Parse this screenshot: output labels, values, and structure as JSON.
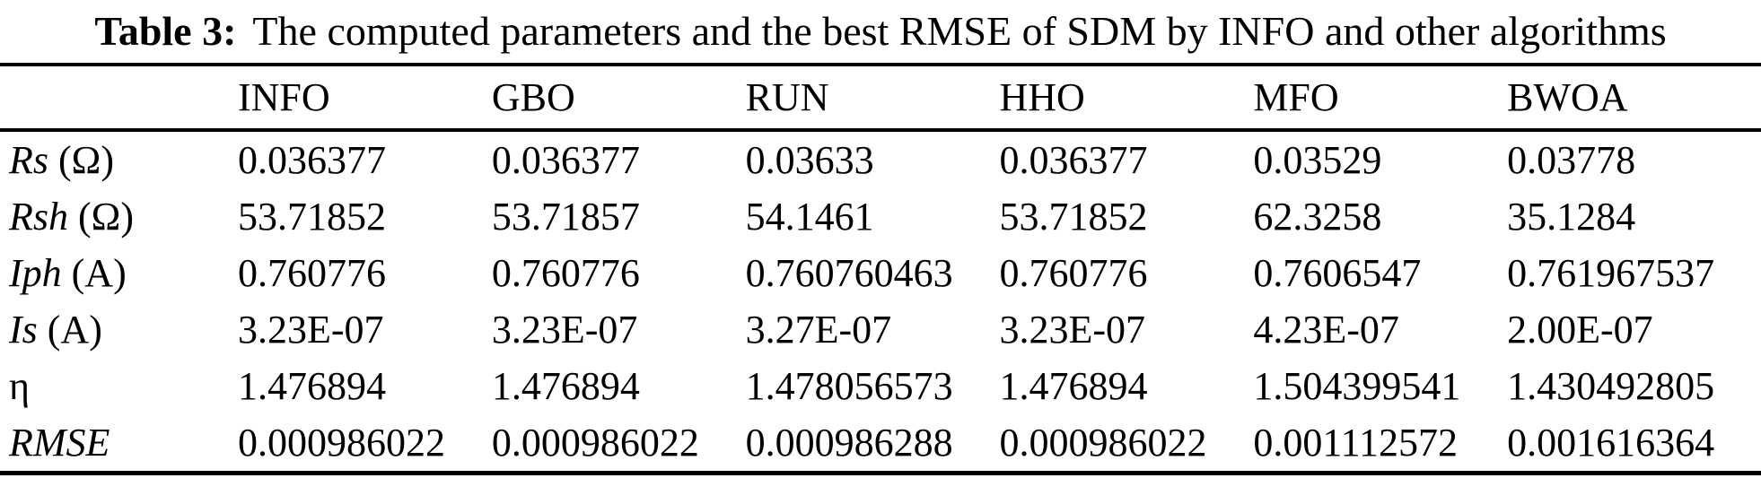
{
  "title": {
    "label": "Table 3:",
    "text": "The computed parameters and the best RMSE of SDM by INFO and other algorithms"
  },
  "colors": {
    "text": "#000000",
    "background": "#ffffff",
    "rule": "#000000"
  },
  "table": {
    "columns": [
      "",
      "INFO",
      "GBO",
      "RUN",
      "HHO",
      "MFO",
      "BWOA"
    ],
    "rows": [
      {
        "param": "Rs",
        "unit": "(Ω)",
        "italic": true,
        "values": [
          "0.036377",
          "0.036377",
          "0.03633",
          "0.036377",
          "0.03529",
          "0.03778"
        ]
      },
      {
        "param": "Rsh",
        "unit": "(Ω)",
        "italic": true,
        "values": [
          "53.71852",
          "53.71857",
          "54.1461",
          "53.71852",
          "62.3258",
          "35.1284"
        ]
      },
      {
        "param": "Iph",
        "unit": "(A)",
        "italic": true,
        "values": [
          "0.760776",
          "0.760776",
          "0.760760463",
          "0.760776",
          "0.7606547",
          "0.761967537"
        ]
      },
      {
        "param": "Is",
        "unit": "(A)",
        "italic": true,
        "values": [
          "3.23E-07",
          "3.23E-07",
          "3.27E-07",
          "3.23E-07",
          "4.23E-07",
          "2.00E-07"
        ]
      },
      {
        "param": "η",
        "unit": "",
        "italic": false,
        "values": [
          "1.476894",
          "1.476894",
          "1.478056573",
          "1.476894",
          "1.504399541",
          "1.430492805"
        ]
      },
      {
        "param": "RMSE",
        "unit": "",
        "italic": true,
        "values": [
          "0.000986022",
          "0.000986022",
          "0.000986288",
          "0.000986022",
          "0.001112572",
          "0.001616364"
        ]
      }
    ]
  }
}
